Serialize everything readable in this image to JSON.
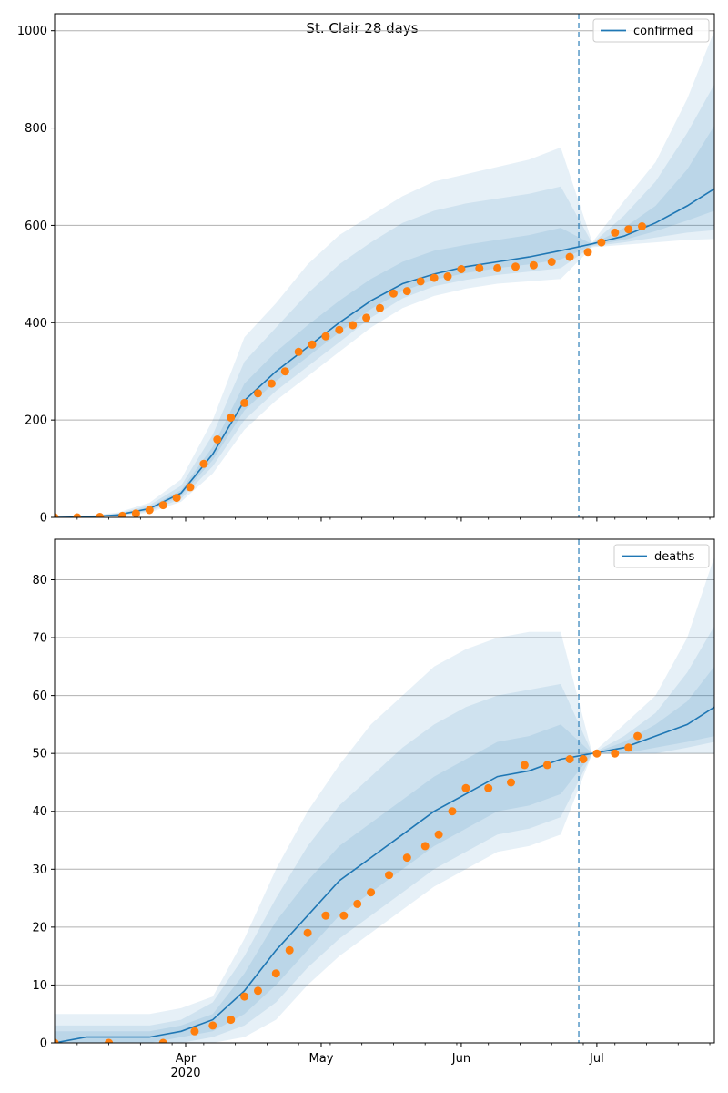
{
  "title": "St. Clair 28 days",
  "colors": {
    "model": "#1f77b4",
    "observed": "#ff7f0e",
    "band": "#1f77b4",
    "grid": "#b0b0b0",
    "forecast_line": "#1f77b4"
  },
  "chart_data": [
    {
      "type": "line",
      "name": "confirmed-panel",
      "legend": "confirmed",
      "legend_position": "top-right",
      "grid": "y",
      "x_axis": {
        "range": [
          "2020-03-03",
          "2020-07-27"
        ],
        "major_ticks": [
          {
            "date": "2020-04-01",
            "label": "Apr",
            "sublabel": "2020"
          },
          {
            "date": "2020-05-01",
            "label": "May",
            "sublabel": ""
          },
          {
            "date": "2020-06-01",
            "label": "Jun",
            "sublabel": ""
          },
          {
            "date": "2020-07-01",
            "label": "Jul",
            "sublabel": ""
          }
        ],
        "minor_ticks": [
          "2020-03-08",
          "2020-03-15",
          "2020-03-22",
          "2020-03-29",
          "2020-04-05",
          "2020-04-12",
          "2020-04-19",
          "2020-04-26",
          "2020-05-03",
          "2020-05-10",
          "2020-05-17",
          "2020-05-24",
          "2020-05-31",
          "2020-06-07",
          "2020-06-14",
          "2020-06-21",
          "2020-06-28",
          "2020-07-05",
          "2020-07-12",
          "2020-07-19",
          "2020-07-26"
        ]
      },
      "ylim": [
        0,
        1035
      ],
      "y_ticks": [
        0,
        200,
        400,
        600,
        800,
        1000
      ],
      "forecast_start": "2020-06-27",
      "model": {
        "dates": [
          "2020-03-03",
          "2020-03-10",
          "2020-03-17",
          "2020-03-24",
          "2020-03-31",
          "2020-04-07",
          "2020-04-14",
          "2020-04-21",
          "2020-04-28",
          "2020-05-05",
          "2020-05-12",
          "2020-05-19",
          "2020-05-26",
          "2020-06-02",
          "2020-06-09",
          "2020-06-16",
          "2020-06-23",
          "2020-06-30",
          "2020-07-07",
          "2020-07-14",
          "2020-07-21",
          "2020-07-27"
        ],
        "median": [
          0,
          1,
          5,
          18,
          50,
          130,
          240,
          300,
          350,
          400,
          445,
          480,
          500,
          515,
          525,
          535,
          548,
          562,
          578,
          605,
          640,
          675
        ],
        "bands": [
          {
            "lo": [
              0,
              0,
              2,
              10,
              32,
              90,
              180,
              240,
              290,
              340,
              390,
              430,
              455,
              470,
              480,
              485,
              490,
              555,
              560,
              565,
              570,
              572
            ],
            "hi": [
              0,
              3,
              10,
              30,
              78,
              200,
              370,
              440,
              520,
              580,
              620,
              660,
              690,
              705,
              720,
              735,
              760,
              565,
              650,
              730,
              860,
              1000
            ]
          },
          {
            "lo": [
              0,
              0,
              3,
              13,
              38,
              105,
              200,
              260,
              310,
              360,
              410,
              450,
              475,
              488,
              498,
              505,
              512,
              557,
              565,
              575,
              585,
              590
            ],
            "hi": [
              0,
              2,
              8,
              25,
              65,
              170,
              320,
              390,
              460,
              520,
              565,
              605,
              630,
              645,
              655,
              665,
              680,
              563,
              620,
              690,
              790,
              890
            ]
          },
          {
            "lo": [
              0,
              0,
              4,
              15,
              44,
              118,
              220,
              280,
              330,
              380,
              428,
              465,
              488,
              502,
              512,
              520,
              530,
              559,
              570,
              588,
              610,
              630
            ],
            "hi": [
              0,
              1,
              6,
              21,
              56,
              145,
              275,
              340,
              395,
              445,
              490,
              525,
              548,
              560,
              570,
              580,
              595,
              561,
              595,
              640,
              715,
              805
            ]
          }
        ]
      },
      "observed": {
        "dates": [
          "2020-03-03",
          "2020-03-08",
          "2020-03-13",
          "2020-03-18",
          "2020-03-21",
          "2020-03-24",
          "2020-03-27",
          "2020-03-30",
          "2020-04-02",
          "2020-04-05",
          "2020-04-08",
          "2020-04-11",
          "2020-04-14",
          "2020-04-17",
          "2020-04-20",
          "2020-04-23",
          "2020-04-26",
          "2020-04-29",
          "2020-05-02",
          "2020-05-05",
          "2020-05-08",
          "2020-05-11",
          "2020-05-14",
          "2020-05-17",
          "2020-05-20",
          "2020-05-23",
          "2020-05-26",
          "2020-05-29",
          "2020-06-01",
          "2020-06-05",
          "2020-06-09",
          "2020-06-13",
          "2020-06-17",
          "2020-06-21",
          "2020-06-25",
          "2020-06-29",
          "2020-07-02",
          "2020-07-05",
          "2020-07-08",
          "2020-07-11"
        ],
        "values": [
          0,
          0,
          1,
          3,
          8,
          15,
          25,
          40,
          62,
          110,
          160,
          205,
          235,
          255,
          275,
          300,
          340,
          355,
          372,
          385,
          395,
          410,
          430,
          460,
          465,
          485,
          492,
          495,
          510,
          512,
          512,
          515,
          518,
          525,
          535,
          545,
          565,
          585,
          592,
          598
        ]
      }
    },
    {
      "type": "line",
      "name": "deaths-panel",
      "legend": "deaths",
      "legend_position": "top-right",
      "grid": "y",
      "x_axis": {
        "range": [
          "2020-03-03",
          "2020-07-27"
        ],
        "major_ticks": [
          {
            "date": "2020-04-01",
            "label": "Apr",
            "sublabel": "2020"
          },
          {
            "date": "2020-05-01",
            "label": "May",
            "sublabel": ""
          },
          {
            "date": "2020-06-01",
            "label": "Jun",
            "sublabel": ""
          },
          {
            "date": "2020-07-01",
            "label": "Jul",
            "sublabel": ""
          }
        ],
        "minor_ticks": [
          "2020-03-08",
          "2020-03-15",
          "2020-03-22",
          "2020-03-29",
          "2020-04-05",
          "2020-04-12",
          "2020-04-19",
          "2020-04-26",
          "2020-05-03",
          "2020-05-10",
          "2020-05-17",
          "2020-05-24",
          "2020-05-31",
          "2020-06-07",
          "2020-06-14",
          "2020-06-21",
          "2020-06-28",
          "2020-07-05",
          "2020-07-12",
          "2020-07-19",
          "2020-07-26"
        ]
      },
      "ylim": [
        0,
        87
      ],
      "y_ticks": [
        0,
        10,
        20,
        30,
        40,
        50,
        60,
        70,
        80
      ],
      "forecast_start": "2020-06-27",
      "model": {
        "dates": [
          "2020-03-03",
          "2020-03-10",
          "2020-03-17",
          "2020-03-24",
          "2020-03-31",
          "2020-04-07",
          "2020-04-14",
          "2020-04-21",
          "2020-04-28",
          "2020-05-05",
          "2020-05-12",
          "2020-05-19",
          "2020-05-26",
          "2020-06-02",
          "2020-06-09",
          "2020-06-16",
          "2020-06-23",
          "2020-06-30",
          "2020-07-07",
          "2020-07-14",
          "2020-07-21",
          "2020-07-27"
        ],
        "median": [
          0,
          1,
          1,
          1,
          2,
          4,
          9,
          16,
          22,
          28,
          32,
          36,
          40,
          43,
          46,
          47,
          49,
          50,
          51,
          53,
          55,
          58
        ],
        "bands": [
          {
            "lo": [
              0,
              0,
              0,
              0,
              0,
              0,
              1,
              4,
              10,
              15,
              19,
              23,
              27,
              30,
              33,
              34,
              36,
              50,
              50,
              50,
              50,
              50
            ],
            "hi": [
              5,
              5,
              5,
              5,
              6,
              8,
              18,
              30,
              40,
              48,
              55,
              60,
              65,
              68,
              70,
              71,
              71,
              50,
              55,
              60,
              70,
              84
            ]
          },
          {
            "lo": [
              0,
              0,
              0,
              0,
              0,
              1,
              3,
              7,
              13,
              18,
              22,
              26,
              30,
              33,
              36,
              37,
              39,
              50,
              50,
              50,
              51,
              52
            ],
            "hi": [
              3,
              3,
              3,
              3,
              4,
              7,
              15,
              25,
              34,
              41,
              46,
              51,
              55,
              58,
              60,
              61,
              62,
              50,
              53,
              57,
              64,
              72
            ]
          },
          {
            "lo": [
              0,
              0,
              0,
              0,
              1,
              2,
              5,
              10,
              16,
              22,
              26,
              30,
              34,
              37,
              40,
              41,
              43,
              50,
              50,
              51,
              52,
              53
            ],
            "hi": [
              2,
              2,
              2,
              2,
              3,
              5,
              12,
              21,
              28,
              34,
              38,
              42,
              46,
              49,
              52,
              53,
              55,
              50,
              52,
              55,
              59,
              65
            ]
          }
        ]
      },
      "observed": {
        "dates": [
          "2020-03-03",
          "2020-03-15",
          "2020-03-27",
          "2020-04-03",
          "2020-04-07",
          "2020-04-11",
          "2020-04-14",
          "2020-04-17",
          "2020-04-21",
          "2020-04-24",
          "2020-04-28",
          "2020-05-02",
          "2020-05-06",
          "2020-05-09",
          "2020-05-12",
          "2020-05-16",
          "2020-05-20",
          "2020-05-24",
          "2020-05-27",
          "2020-05-30",
          "2020-06-02",
          "2020-06-07",
          "2020-06-12",
          "2020-06-15",
          "2020-06-20",
          "2020-06-25",
          "2020-06-28",
          "2020-07-01",
          "2020-07-05",
          "2020-07-08",
          "2020-07-10"
        ],
        "values": [
          0,
          0,
          0,
          2,
          3,
          4,
          8,
          9,
          12,
          16,
          19,
          22,
          22,
          24,
          26,
          29,
          32,
          34,
          36,
          40,
          44,
          44,
          45,
          48,
          48,
          49,
          49,
          50,
          50,
          51,
          53
        ]
      }
    }
  ]
}
